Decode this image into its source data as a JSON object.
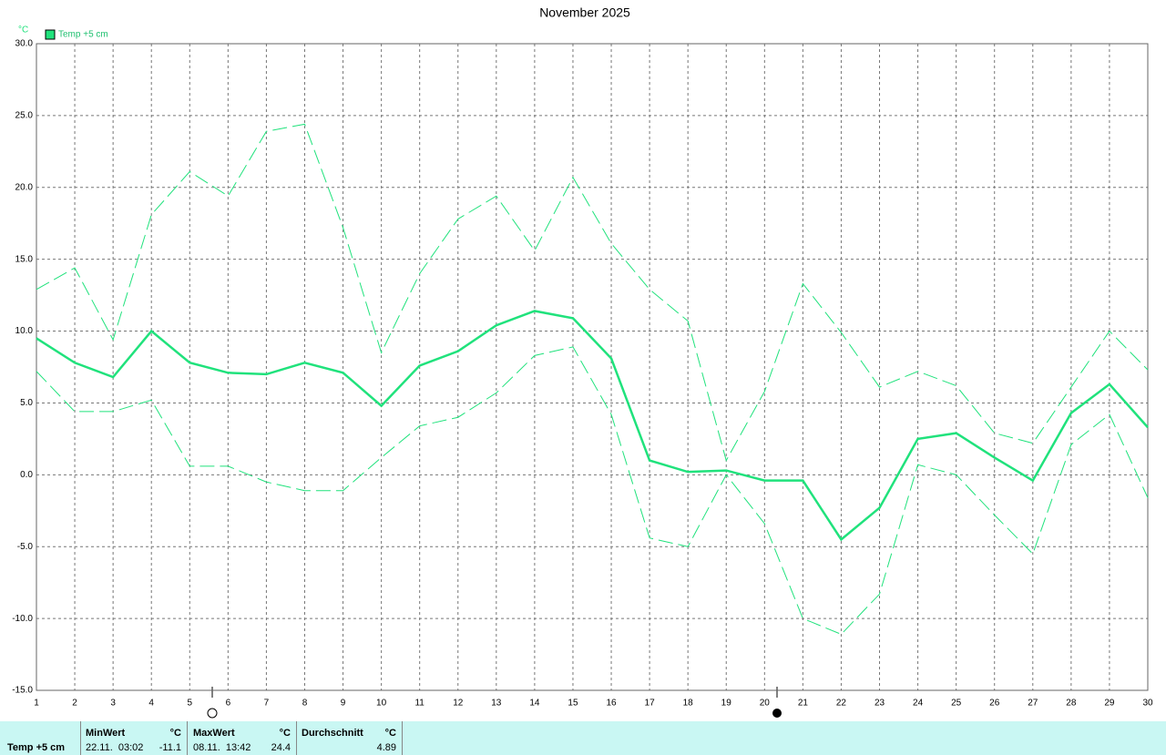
{
  "chart_data": {
    "type": "line",
    "title": "November 2025",
    "y_unit": "°C",
    "x": [
      1,
      2,
      3,
      4,
      5,
      6,
      7,
      8,
      9,
      10,
      11,
      12,
      13,
      14,
      15,
      16,
      17,
      18,
      19,
      20,
      21,
      22,
      23,
      24,
      25,
      26,
      27,
      28,
      29,
      30
    ],
    "xlim": [
      1,
      30
    ],
    "ylim": [
      -15,
      30
    ],
    "yticks": [
      {
        "value": -15,
        "label": "-15.0"
      },
      {
        "value": -10,
        "label": "-10.0"
      },
      {
        "value": -5,
        "label": "-5.0"
      },
      {
        "value": 0,
        "label": "0.0"
      },
      {
        "value": 5,
        "label": "5.0"
      },
      {
        "value": 10,
        "label": "10.0"
      },
      {
        "value": 15,
        "label": "15.0"
      },
      {
        "value": 20,
        "label": "20.0"
      },
      {
        "value": 25,
        "label": "25.0"
      },
      {
        "value": 30,
        "label": "30.0"
      }
    ],
    "grid": true,
    "series": [
      {
        "name": "Temp +5 cm",
        "color": "#20e27c",
        "values": [
          9.5,
          7.8,
          6.8,
          10.0,
          7.8,
          7.1,
          7.0,
          7.8,
          7.1,
          4.8,
          7.6,
          8.6,
          10.4,
          11.4,
          10.9,
          8.1,
          1.0,
          0.2,
          0.3,
          -0.4,
          -0.4,
          -4.5,
          -2.3,
          2.5,
          2.9,
          1.2,
          -0.4,
          4.3,
          6.3,
          3.3
        ],
        "max": [
          12.9,
          14.4,
          9.4,
          18.1,
          21.1,
          19.4,
          23.9,
          24.4,
          17.2,
          8.5,
          14.0,
          17.8,
          19.4,
          15.6,
          20.7,
          16.1,
          12.9,
          10.7,
          1.0,
          5.8,
          13.3,
          9.9,
          6.1,
          7.2,
          6.2,
          2.9,
          2.2,
          6.1,
          10.0,
          7.3
        ],
        "min": [
          7.2,
          4.4,
          4.4,
          5.2,
          0.6,
          0.6,
          -0.5,
          -1.1,
          -1.1,
          1.2,
          3.4,
          4.0,
          5.7,
          8.3,
          8.9,
          4.2,
          -4.4,
          -5.0,
          0.0,
          -3.4,
          -10.0,
          -11.1,
          -8.3,
          0.7,
          0.0,
          -2.8,
          -5.5,
          2.1,
          4.2,
          -1.6
        ]
      }
    ],
    "stats": {
      "sensor": "Temp +5 cm",
      "min": {
        "label": "MinWert",
        "unit": "°C",
        "time": "22.11.  03:02",
        "value": -11.1
      },
      "max": {
        "label": "MaxWert",
        "unit": "°C",
        "time": "08.11.  13:42",
        "value": 24.4
      },
      "avg": {
        "label": "Durchschnitt",
        "unit": "°C",
        "value": 4.89
      }
    }
  }
}
